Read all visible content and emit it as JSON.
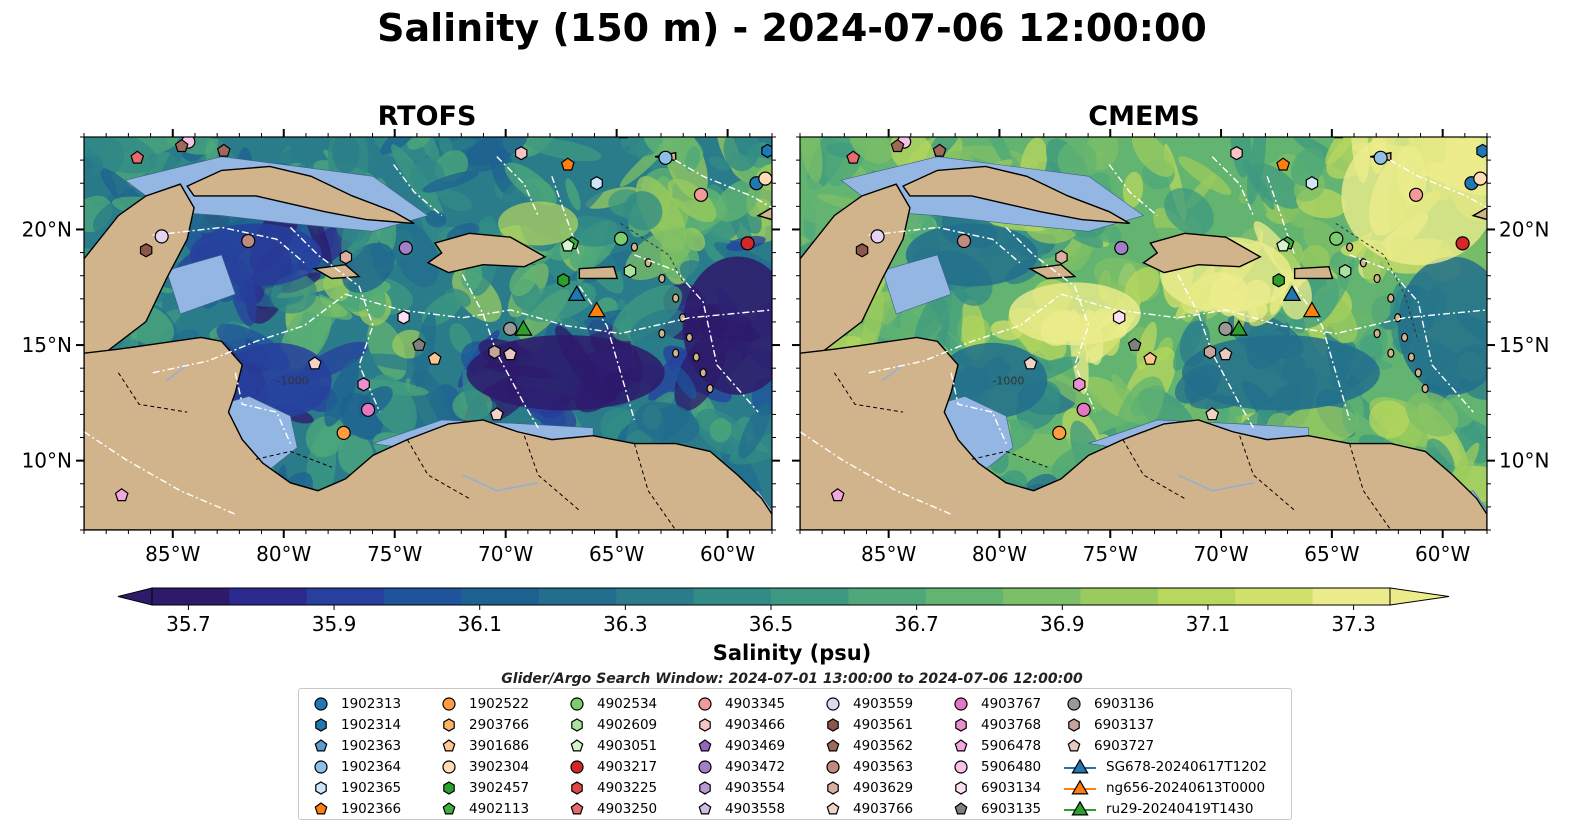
{
  "suptitle": "Salinity (150 m) - 2024-07-06 12:00:00",
  "panels": [
    {
      "id": "rtofs",
      "title": "RTOFS",
      "palette": "low"
    },
    {
      "id": "cmems",
      "title": "CMEMS",
      "palette": "high"
    }
  ],
  "map": {
    "lon_range": [
      -89,
      -58
    ],
    "lat_range": [
      7,
      24
    ],
    "lon_ticks": [
      {
        "value": -85,
        "label": "85°W"
      },
      {
        "value": -80,
        "label": "80°W"
      },
      {
        "value": -75,
        "label": "75°W"
      },
      {
        "value": -70,
        "label": "70°W"
      },
      {
        "value": -65,
        "label": "65°W"
      },
      {
        "value": -60,
        "label": "60°W"
      }
    ],
    "lat_ticks": [
      {
        "value": 20,
        "label": "20°N"
      },
      {
        "value": 15,
        "label": "15°N"
      },
      {
        "value": 10,
        "label": "10°N"
      }
    ],
    "contour_label": "-1000",
    "colors": {
      "land": "#d2b48c",
      "shelf": "#94b6e2",
      "eez_line": "#ffffff",
      "coast": "#000000"
    }
  },
  "colorbar": {
    "min": 35.7,
    "max": 37.3,
    "step": 0.1,
    "tick_values": [
      35.7,
      35.9,
      36.1,
      36.3,
      36.5,
      36.7,
      36.9,
      37.1,
      37.3
    ],
    "tick_labels": [
      "35.7",
      "35.9",
      "36.1",
      "36.3",
      "36.5",
      "36.7",
      "36.9",
      "37.1",
      "37.3"
    ],
    "label": "Salinity (psu)",
    "colors": [
      "#2e1a6b",
      "#2d2a8f",
      "#27409e",
      "#1f539c",
      "#1d6190",
      "#226e8c",
      "#2a7c8a",
      "#318b86",
      "#3d9a80",
      "#4ea87a",
      "#63b470",
      "#7dbf66",
      "#9acb5e",
      "#b7d75e",
      "#d1e06a",
      "#ecec8c"
    ]
  },
  "search_window": "Glider/Argo Search Window: 2024-07-01 13:00:00 to 2024-07-06 12:00:00",
  "legend": [
    {
      "label": "1902313",
      "marker": "circle",
      "color": "#1f77b4"
    },
    {
      "label": "1902314",
      "marker": "hexagon",
      "color": "#1f77b4"
    },
    {
      "label": "1902363",
      "marker": "pentagon",
      "color": "#5d9ad1"
    },
    {
      "label": "1902364",
      "marker": "circle",
      "color": "#8fbfe6"
    },
    {
      "label": "1902365",
      "marker": "hexagon",
      "color": "#cfe6f8"
    },
    {
      "label": "1902366",
      "marker": "pentagon",
      "color": "#ff7f0e"
    },
    {
      "label": "1902522",
      "marker": "circle",
      "color": "#ff9b40"
    },
    {
      "label": "2903766",
      "marker": "hexagon",
      "color": "#ffb366"
    },
    {
      "label": "3901686",
      "marker": "pentagon",
      "color": "#ffc58f"
    },
    {
      "label": "3902304",
      "marker": "circle",
      "color": "#ffdcb5"
    },
    {
      "label": "3902457",
      "marker": "hexagon",
      "color": "#2ca02c"
    },
    {
      "label": "4902113",
      "marker": "pentagon",
      "color": "#3fb03f"
    },
    {
      "label": "4902534",
      "marker": "circle",
      "color": "#7ccd6e"
    },
    {
      "label": "4902609",
      "marker": "hexagon",
      "color": "#a8e39d"
    },
    {
      "label": "4903051",
      "marker": "pentagon",
      "color": "#d4f5cc"
    },
    {
      "label": "4903217",
      "marker": "circle",
      "color": "#d62728"
    },
    {
      "label": "4903225",
      "marker": "hexagon",
      "color": "#e04848"
    },
    {
      "label": "4903250",
      "marker": "pentagon",
      "color": "#e86a6a"
    },
    {
      "label": "4903345",
      "marker": "circle",
      "color": "#f09a9a"
    },
    {
      "label": "4903466",
      "marker": "hexagon",
      "color": "#f8c4c4"
    },
    {
      "label": "4903469",
      "marker": "pentagon",
      "color": "#9467bd"
    },
    {
      "label": "4903472",
      "marker": "circle",
      "color": "#a47ec8"
    },
    {
      "label": "4903554",
      "marker": "hexagon",
      "color": "#b89ad6"
    },
    {
      "label": "4903558",
      "marker": "pentagon",
      "color": "#d2bde8"
    },
    {
      "label": "4903559",
      "marker": "circle",
      "color": "#e3d4f2"
    },
    {
      "label": "4903561",
      "marker": "hexagon",
      "color": "#8c564b"
    },
    {
      "label": "4903562",
      "marker": "pentagon",
      "color": "#a0675b"
    },
    {
      "label": "4903563",
      "marker": "circle",
      "color": "#c08b7e"
    },
    {
      "label": "4903629",
      "marker": "hexagon",
      "color": "#dbaea2"
    },
    {
      "label": "4903766",
      "marker": "pentagon",
      "color": "#f2d3c8"
    },
    {
      "label": "4903767",
      "marker": "circle",
      "color": "#e377c2"
    },
    {
      "label": "4903768",
      "marker": "hexagon",
      "color": "#ea8fd0"
    },
    {
      "label": "5906478",
      "marker": "pentagon",
      "color": "#f2a8dd"
    },
    {
      "label": "5906480",
      "marker": "circle",
      "color": "#f7c2e8"
    },
    {
      "label": "6903134",
      "marker": "hexagon",
      "color": "#fbdff3"
    },
    {
      "label": "6903135",
      "marker": "pentagon",
      "color": "#7f7f7f"
    },
    {
      "label": "6903136",
      "marker": "circle",
      "color": "#999999"
    },
    {
      "label": "6903137",
      "marker": "hexagon",
      "color": "#c4a49b"
    },
    {
      "label": "6903727",
      "marker": "pentagon",
      "color": "#e8c8c0"
    },
    {
      "label": "SG678-20240617T1202",
      "marker": "glider",
      "color": "#1f77b4"
    },
    {
      "label": "ng656-20240613T0000",
      "marker": "glider",
      "color": "#ff7f0e"
    },
    {
      "label": "ru29-20240419T1430",
      "marker": "glider",
      "color": "#2ca02c"
    }
  ],
  "observations": [
    {
      "label": "1902313",
      "lon": -58.7,
      "lat": 22.0
    },
    {
      "label": "1902314",
      "lon": -58.2,
      "lat": 23.4
    },
    {
      "label": "1902363",
      "lon": -64.7,
      "lat": 24.2
    },
    {
      "label": "1902364",
      "lon": -62.8,
      "lat": 23.1
    },
    {
      "label": "1902365",
      "lon": -65.9,
      "lat": 22.0
    },
    {
      "label": "1902366",
      "lon": -67.2,
      "lat": 22.8
    },
    {
      "label": "1902522",
      "lon": -77.3,
      "lat": 11.2
    },
    {
      "label": "3901686",
      "lon": -73.2,
      "lat": 14.4
    },
    {
      "label": "3902304",
      "lon": -58.3,
      "lat": 22.2
    },
    {
      "label": "3902457",
      "lon": -67.4,
      "lat": 17.8
    },
    {
      "label": "4902113",
      "lon": -67.0,
      "lat": 19.4
    },
    {
      "label": "4902534",
      "lon": -64.8,
      "lat": 19.6
    },
    {
      "label": "4902609",
      "lon": -64.4,
      "lat": 18.2
    },
    {
      "label": "4903051",
      "lon": -67.2,
      "lat": 19.3
    },
    {
      "label": "4903217",
      "lon": -59.1,
      "lat": 19.4
    },
    {
      "label": "4903250",
      "lon": -86.6,
      "lat": 23.1
    },
    {
      "label": "4903345",
      "lon": -61.2,
      "lat": 21.5
    },
    {
      "label": "4903466",
      "lon": -69.3,
      "lat": 23.3
    },
    {
      "label": "4903472",
      "lon": -74.5,
      "lat": 19.2
    },
    {
      "label": "4903559",
      "lon": -85.5,
      "lat": 19.7
    },
    {
      "label": "4903561",
      "lon": -86.2,
      "lat": 19.1
    },
    {
      "label": "4903562",
      "lon": -82.7,
      "lat": 23.4
    },
    {
      "label": "4903563",
      "lon": -81.6,
      "lat": 19.5
    },
    {
      "label": "4903629",
      "lon": -77.2,
      "lat": 18.8
    },
    {
      "label": "4903766",
      "lon": -70.4,
      "lat": 12.0
    },
    {
      "label": "4903767",
      "lon": -76.2,
      "lat": 12.2
    },
    {
      "label": "4903768",
      "lon": -76.4,
      "lat": 13.3
    },
    {
      "label": "5906478",
      "lon": -87.3,
      "lat": 8.5
    },
    {
      "label": "5906480",
      "lon": -84.3,
      "lat": 23.8
    },
    {
      "label": "6903134",
      "lon": -74.6,
      "lat": 16.2
    },
    {
      "label": "6903135",
      "lon": -73.9,
      "lat": 15.0
    },
    {
      "label": "6903136",
      "lon": -69.8,
      "lat": 15.7
    },
    {
      "label": "6903137",
      "lon": -70.5,
      "lat": 14.7
    },
    {
      "label": "6903727",
      "lon": -69.8,
      "lat": 14.6
    },
    {
      "label": "4903766",
      "lon": -78.6,
      "lat": 14.2
    },
    {
      "label": "4903562",
      "lon": -84.6,
      "lat": 23.6
    }
  ],
  "gliders": [
    {
      "label": "SG678-20240617T1202",
      "lon": -66.8,
      "lat": 17.2
    },
    {
      "label": "ng656-20240613T0000",
      "lon": -65.9,
      "lat": 16.5
    },
    {
      "label": "ru29-20240419T1430",
      "lon": -69.2,
      "lat": 15.7
    }
  ]
}
